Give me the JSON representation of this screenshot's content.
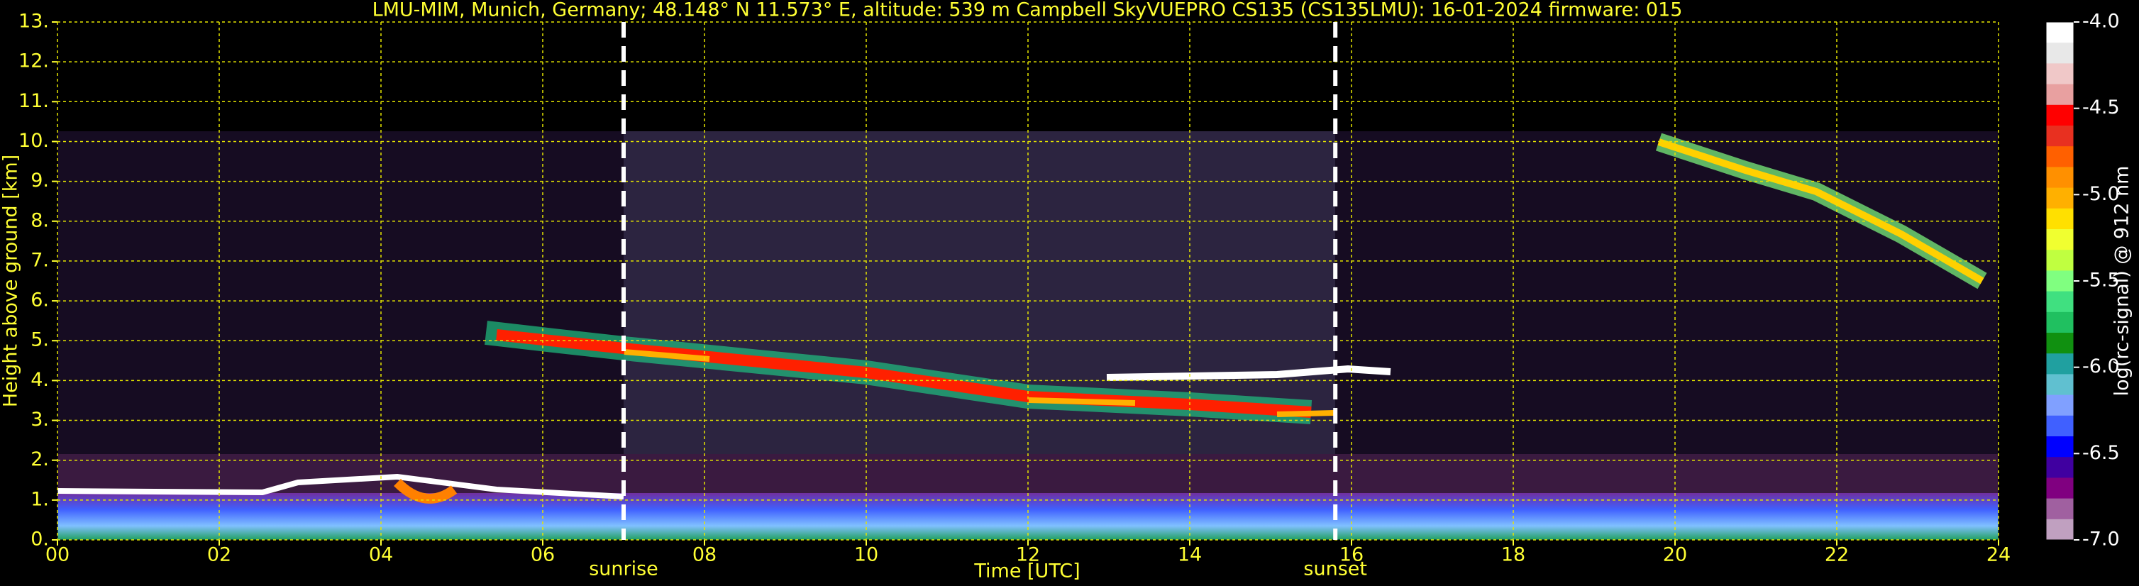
{
  "chart_data": {
    "type": "heatmap",
    "title": "LMU-MIM, Munich, Germany; 48.148° N 11.573° E, altitude: 539 m    Campbell SkyVUEPRO CS135 (CS135LMU): 16-01-2024    firmware: 015",
    "x_label": "Time [UTC]",
    "y_label": "Height above ground [km]",
    "xlim": [
      0,
      24
    ],
    "xticks": [
      {
        "value": 0,
        "label": "00"
      },
      {
        "value": 2,
        "label": "02"
      },
      {
        "value": 4,
        "label": "04"
      },
      {
        "value": 6,
        "label": "06"
      },
      {
        "value": 8,
        "label": "08"
      },
      {
        "value": 10,
        "label": "10"
      },
      {
        "value": 12,
        "label": "12"
      },
      {
        "value": 14,
        "label": "14"
      },
      {
        "value": 16,
        "label": "16"
      },
      {
        "value": 18,
        "label": "18"
      },
      {
        "value": 20,
        "label": "20"
      },
      {
        "value": 22,
        "label": "22"
      },
      {
        "value": 24,
        "label": "24"
      }
    ],
    "ylim": [
      0,
      13
    ],
    "yticks": [
      {
        "value": 0,
        "label": "0."
      },
      {
        "value": 1,
        "label": "1."
      },
      {
        "value": 2,
        "label": "2."
      },
      {
        "value": 3,
        "label": "3."
      },
      {
        "value": 4,
        "label": "4."
      },
      {
        "value": 5,
        "label": "5."
      },
      {
        "value": 6,
        "label": "6."
      },
      {
        "value": 7,
        "label": "7."
      },
      {
        "value": 8,
        "label": "8."
      },
      {
        "value": 9,
        "label": "9."
      },
      {
        "value": 10,
        "label": "10."
      },
      {
        "value": 11,
        "label": "11."
      },
      {
        "value": 12,
        "label": "12."
      },
      {
        "value": 13,
        "label": "13."
      }
    ],
    "grid": true,
    "annotations": [
      {
        "text": "sunrise",
        "x": 7.0
      },
      {
        "text": "sunset",
        "x": 15.8
      }
    ],
    "colorbar": {
      "label": "log(rc-signal) @ 912 nm",
      "lim": [
        -7,
        -4
      ],
      "ticks": [
        {
          "value": -4,
          "label": "-4.0"
        },
        {
          "value": -4.5,
          "label": "-4.5"
        },
        {
          "value": -5,
          "label": "-5.0"
        },
        {
          "value": -5.5,
          "label": "-5.5"
        },
        {
          "value": -6,
          "label": "-6.0"
        },
        {
          "value": -6.5,
          "label": "-6.5"
        },
        {
          "value": -7,
          "label": "-7.0"
        }
      ],
      "colors": [
        "#ffffff",
        "#e8e8e8",
        "#f0c8c8",
        "#e8a0a0",
        "#ff0000",
        "#e83020",
        "#ff6000",
        "#ff9000",
        "#ffb000",
        "#ffe000",
        "#f0ff30",
        "#c0ff40",
        "#80ff80",
        "#40e080",
        "#20c060",
        "#109010",
        "#20a0a0",
        "#60c0d0",
        "#80a0ff",
        "#4060ff",
        "#0000ff",
        "#4000a0",
        "#800080",
        "#a060a0",
        "#c0a0c0"
      ]
    }
  }
}
